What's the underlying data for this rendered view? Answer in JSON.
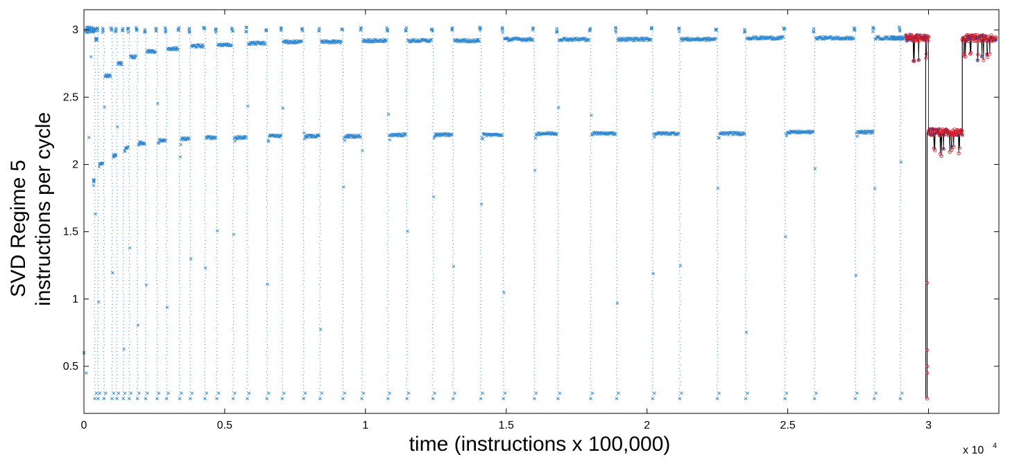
{
  "chart_data": {
    "type": "scatter",
    "title": "",
    "xlabel": "time (instructions x 100,000)",
    "ylabel_lines": [
      "SVD Regime 5",
      "instructions per cycle"
    ],
    "x_multiplier_text": "x 10",
    "x_multiplier_exponent": "4",
    "xlim": [
      0,
      32500
    ],
    "ylim": [
      0.15,
      3.15
    ],
    "x_ticks": [
      0,
      5000,
      10000,
      15000,
      20000,
      25000,
      30000
    ],
    "x_tick_labels": [
      "0",
      "0.5",
      "1",
      "1.5",
      "2",
      "2.5",
      "3"
    ],
    "y_ticks": [
      0.5,
      1,
      1.5,
      2,
      2.5,
      3
    ],
    "y_tick_labels": [
      "0.5",
      "1",
      "1.5",
      "2",
      "2.5",
      "3"
    ],
    "grid": false,
    "colors": {
      "main_series": "#2e86cf",
      "highlight_marker": "#d6202a",
      "highlight_line": "#000000",
      "highlight_x": "#1a2fa0"
    },
    "series": [
      {
        "marker": "x",
        "phase_starts": [
          300,
          500,
          1000,
          1400,
          1900,
          2600,
          3400,
          4300,
          5300,
          6500,
          7800,
          9200,
          10800,
          12400,
          14100,
          16000,
          18000,
          20200,
          22500,
          24900,
          27400
        ],
        "phase_ends": [
          500,
          1000,
          1400,
          1900,
          2600,
          3400,
          4300,
          5300,
          6500,
          7800,
          9200,
          10800,
          12400,
          14100,
          16000,
          18000,
          20200,
          22500,
          24900,
          27400,
          29000
        ],
        "upper_plateau_ipc": [
          2.93,
          2.66,
          2.75,
          2.8,
          2.84,
          2.86,
          2.88,
          2.89,
          2.9,
          2.91,
          2.91,
          2.92,
          2.92,
          2.92,
          2.93,
          2.93,
          2.93,
          2.93,
          2.94,
          2.94,
          2.94
        ],
        "lower_plateau_ipc": [
          1.88,
          2.01,
          2.07,
          2.13,
          2.16,
          2.18,
          2.19,
          2.2,
          2.2,
          2.21,
          2.21,
          2.21,
          2.22,
          2.22,
          2.22,
          2.23,
          2.23,
          2.23,
          2.23,
          2.24,
          2.24
        ],
        "transition_low_ipc": 0.26,
        "transition_high_ipc": 3.02
      },
      {
        "marker": "o",
        "segments": [
          {
            "x_start": 29200,
            "x_end": 30000,
            "ipc": 2.94
          },
          {
            "x_start": 30000,
            "x_end": 31200,
            "ipc": 2.24
          },
          {
            "x_start": 31200,
            "x_end": 32400,
            "ipc": 2.94
          }
        ],
        "drop_x": 29950,
        "drop_min_ipc": 0.26
      }
    ]
  }
}
